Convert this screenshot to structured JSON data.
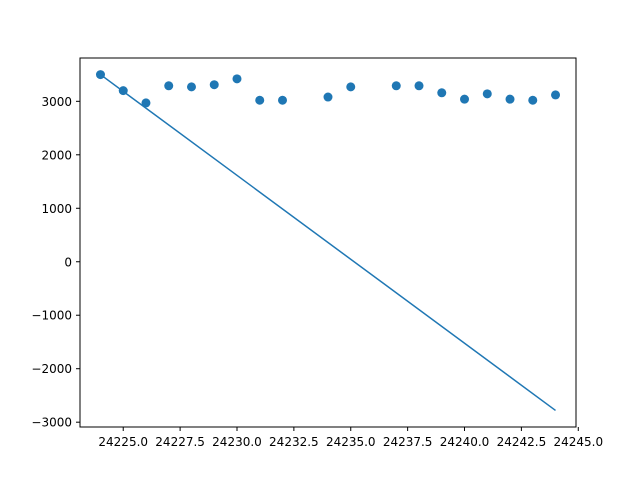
{
  "chart_data": {
    "type": "scatter",
    "title": "",
    "xlabel": "",
    "ylabel": "",
    "xlim": [
      24223.1,
      24244.9
    ],
    "ylim": [
      -3090,
      3810
    ],
    "grid": false,
    "x_ticks": [
      {
        "value": 24225.0,
        "label": "24225.0"
      },
      {
        "value": 24227.5,
        "label": "24227.5"
      },
      {
        "value": 24230.0,
        "label": "24230.0"
      },
      {
        "value": 24232.5,
        "label": "24232.5"
      },
      {
        "value": 24235.0,
        "label": "24235.0"
      },
      {
        "value": 24237.5,
        "label": "24237.5"
      },
      {
        "value": 24240.0,
        "label": "24240.0"
      },
      {
        "value": 24242.5,
        "label": "24242.5"
      },
      {
        "value": 24245.0,
        "label": "24245.0"
      }
    ],
    "y_ticks": [
      {
        "value": -3000,
        "label": "−3000"
      },
      {
        "value": -2000,
        "label": "−2000"
      },
      {
        "value": -1000,
        "label": "−1000"
      },
      {
        "value": 0,
        "label": "0"
      },
      {
        "value": 1000,
        "label": "1000"
      },
      {
        "value": 2000,
        "label": "2000"
      },
      {
        "value": 3000,
        "label": "3000"
      }
    ],
    "series": [
      {
        "kind": "scatter",
        "color": "#1f77b4",
        "points": [
          {
            "x": 24224,
            "y": 3500
          },
          {
            "x": 24225,
            "y": 3200
          },
          {
            "x": 24226,
            "y": 2970
          },
          {
            "x": 24227,
            "y": 3290
          },
          {
            "x": 24228,
            "y": 3270
          },
          {
            "x": 24229,
            "y": 3310
          },
          {
            "x": 24230,
            "y": 3420
          },
          {
            "x": 24231,
            "y": 3020
          },
          {
            "x": 24232,
            "y": 3020
          },
          {
            "x": 24234,
            "y": 3080
          },
          {
            "x": 24235,
            "y": 3270
          },
          {
            "x": 24237,
            "y": 3290
          },
          {
            "x": 24238,
            "y": 3290
          },
          {
            "x": 24239,
            "y": 3160
          },
          {
            "x": 24240,
            "y": 3040
          },
          {
            "x": 24241,
            "y": 3140
          },
          {
            "x": 24242,
            "y": 3040
          },
          {
            "x": 24243,
            "y": 3020
          },
          {
            "x": 24244,
            "y": 3120
          }
        ]
      },
      {
        "kind": "line",
        "color": "#1f77b4",
        "points": [
          {
            "x": 24224,
            "y": 3500
          },
          {
            "x": 24244,
            "y": -2780
          }
        ]
      }
    ]
  }
}
